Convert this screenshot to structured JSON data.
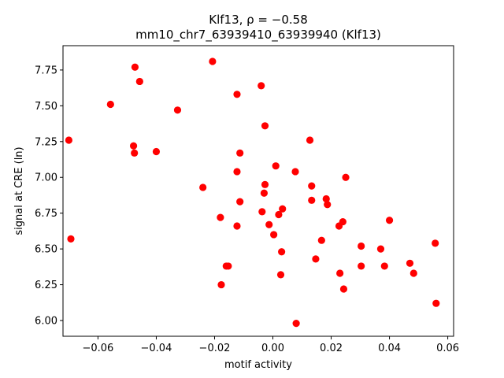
{
  "chart_data": {
    "type": "scatter",
    "title_line1": "Klf13, ρ = −0.58",
    "title_line2": "mm10_chr7_63939410_63939940 (Klf13)",
    "xlabel": "motif activity",
    "ylabel": "signal at CRE (ln)",
    "xlim": [
      -0.072,
      0.062
    ],
    "ylim": [
      5.89,
      7.92
    ],
    "xticks": [
      -0.06,
      -0.04,
      -0.02,
      0.0,
      0.02,
      0.04,
      0.06
    ],
    "xtick_labels": [
      "−0.06",
      "−0.04",
      "−0.02",
      "0.00",
      "0.02",
      "0.04",
      "0.06"
    ],
    "yticks": [
      6.0,
      6.25,
      6.5,
      6.75,
      7.0,
      7.25,
      7.5,
      7.75
    ],
    "ytick_labels": [
      "6.00",
      "6.25",
      "6.50",
      "6.75",
      "7.00",
      "7.25",
      "7.50",
      "7.75"
    ],
    "grid": false,
    "marker_color": "#ff0000",
    "points": [
      {
        "x": -0.07,
        "y": 7.26
      },
      {
        "x": -0.0693,
        "y": 6.57
      },
      {
        "x": -0.0557,
        "y": 7.51
      },
      {
        "x": -0.0473,
        "y": 7.77
      },
      {
        "x": -0.0457,
        "y": 7.67
      },
      {
        "x": -0.0478,
        "y": 7.22
      },
      {
        "x": -0.0475,
        "y": 7.17
      },
      {
        "x": -0.04,
        "y": 7.18
      },
      {
        "x": -0.0327,
        "y": 7.47
      },
      {
        "x": -0.024,
        "y": 6.93
      },
      {
        "x": -0.0207,
        "y": 7.81
      },
      {
        "x": -0.0123,
        "y": 7.58
      },
      {
        "x": -0.0123,
        "y": 7.04
      },
      {
        "x": -0.0113,
        "y": 7.17
      },
      {
        "x": -0.0113,
        "y": 6.83
      },
      {
        "x": -0.018,
        "y": 6.72
      },
      {
        "x": -0.0123,
        "y": 6.66
      },
      {
        "x": -0.016,
        "y": 6.38
      },
      {
        "x": -0.0153,
        "y": 6.38
      },
      {
        "x": -0.0177,
        "y": 6.25
      },
      {
        "x": -0.004,
        "y": 7.64
      },
      {
        "x": -0.0027,
        "y": 7.36
      },
      {
        "x": -0.0027,
        "y": 6.95
      },
      {
        "x": -0.003,
        "y": 6.89
      },
      {
        "x": -0.0037,
        "y": 6.76
      },
      {
        "x": -0.0013,
        "y": 6.67
      },
      {
        "x": 0.0003,
        "y": 6.6
      },
      {
        "x": 0.001,
        "y": 7.08
      },
      {
        "x": 0.002,
        "y": 6.74
      },
      {
        "x": 0.0033,
        "y": 6.78
      },
      {
        "x": 0.003,
        "y": 6.48
      },
      {
        "x": 0.0027,
        "y": 6.32
      },
      {
        "x": 0.0077,
        "y": 7.04
      },
      {
        "x": 0.008,
        "y": 5.98
      },
      {
        "x": 0.0127,
        "y": 7.26
      },
      {
        "x": 0.0133,
        "y": 6.94
      },
      {
        "x": 0.0133,
        "y": 6.84
      },
      {
        "x": 0.0147,
        "y": 6.43
      },
      {
        "x": 0.0167,
        "y": 6.56
      },
      {
        "x": 0.0183,
        "y": 6.85
      },
      {
        "x": 0.0187,
        "y": 6.81
      },
      {
        "x": 0.0227,
        "y": 6.66
      },
      {
        "x": 0.024,
        "y": 6.69
      },
      {
        "x": 0.023,
        "y": 6.33
      },
      {
        "x": 0.0243,
        "y": 6.22
      },
      {
        "x": 0.025,
        "y": 7.0
      },
      {
        "x": 0.0303,
        "y": 6.52
      },
      {
        "x": 0.0303,
        "y": 6.38
      },
      {
        "x": 0.037,
        "y": 6.5
      },
      {
        "x": 0.0383,
        "y": 6.38
      },
      {
        "x": 0.04,
        "y": 6.7
      },
      {
        "x": 0.047,
        "y": 6.4
      },
      {
        "x": 0.0483,
        "y": 6.33
      },
      {
        "x": 0.0557,
        "y": 6.54
      },
      {
        "x": 0.056,
        "y": 6.12
      }
    ]
  }
}
